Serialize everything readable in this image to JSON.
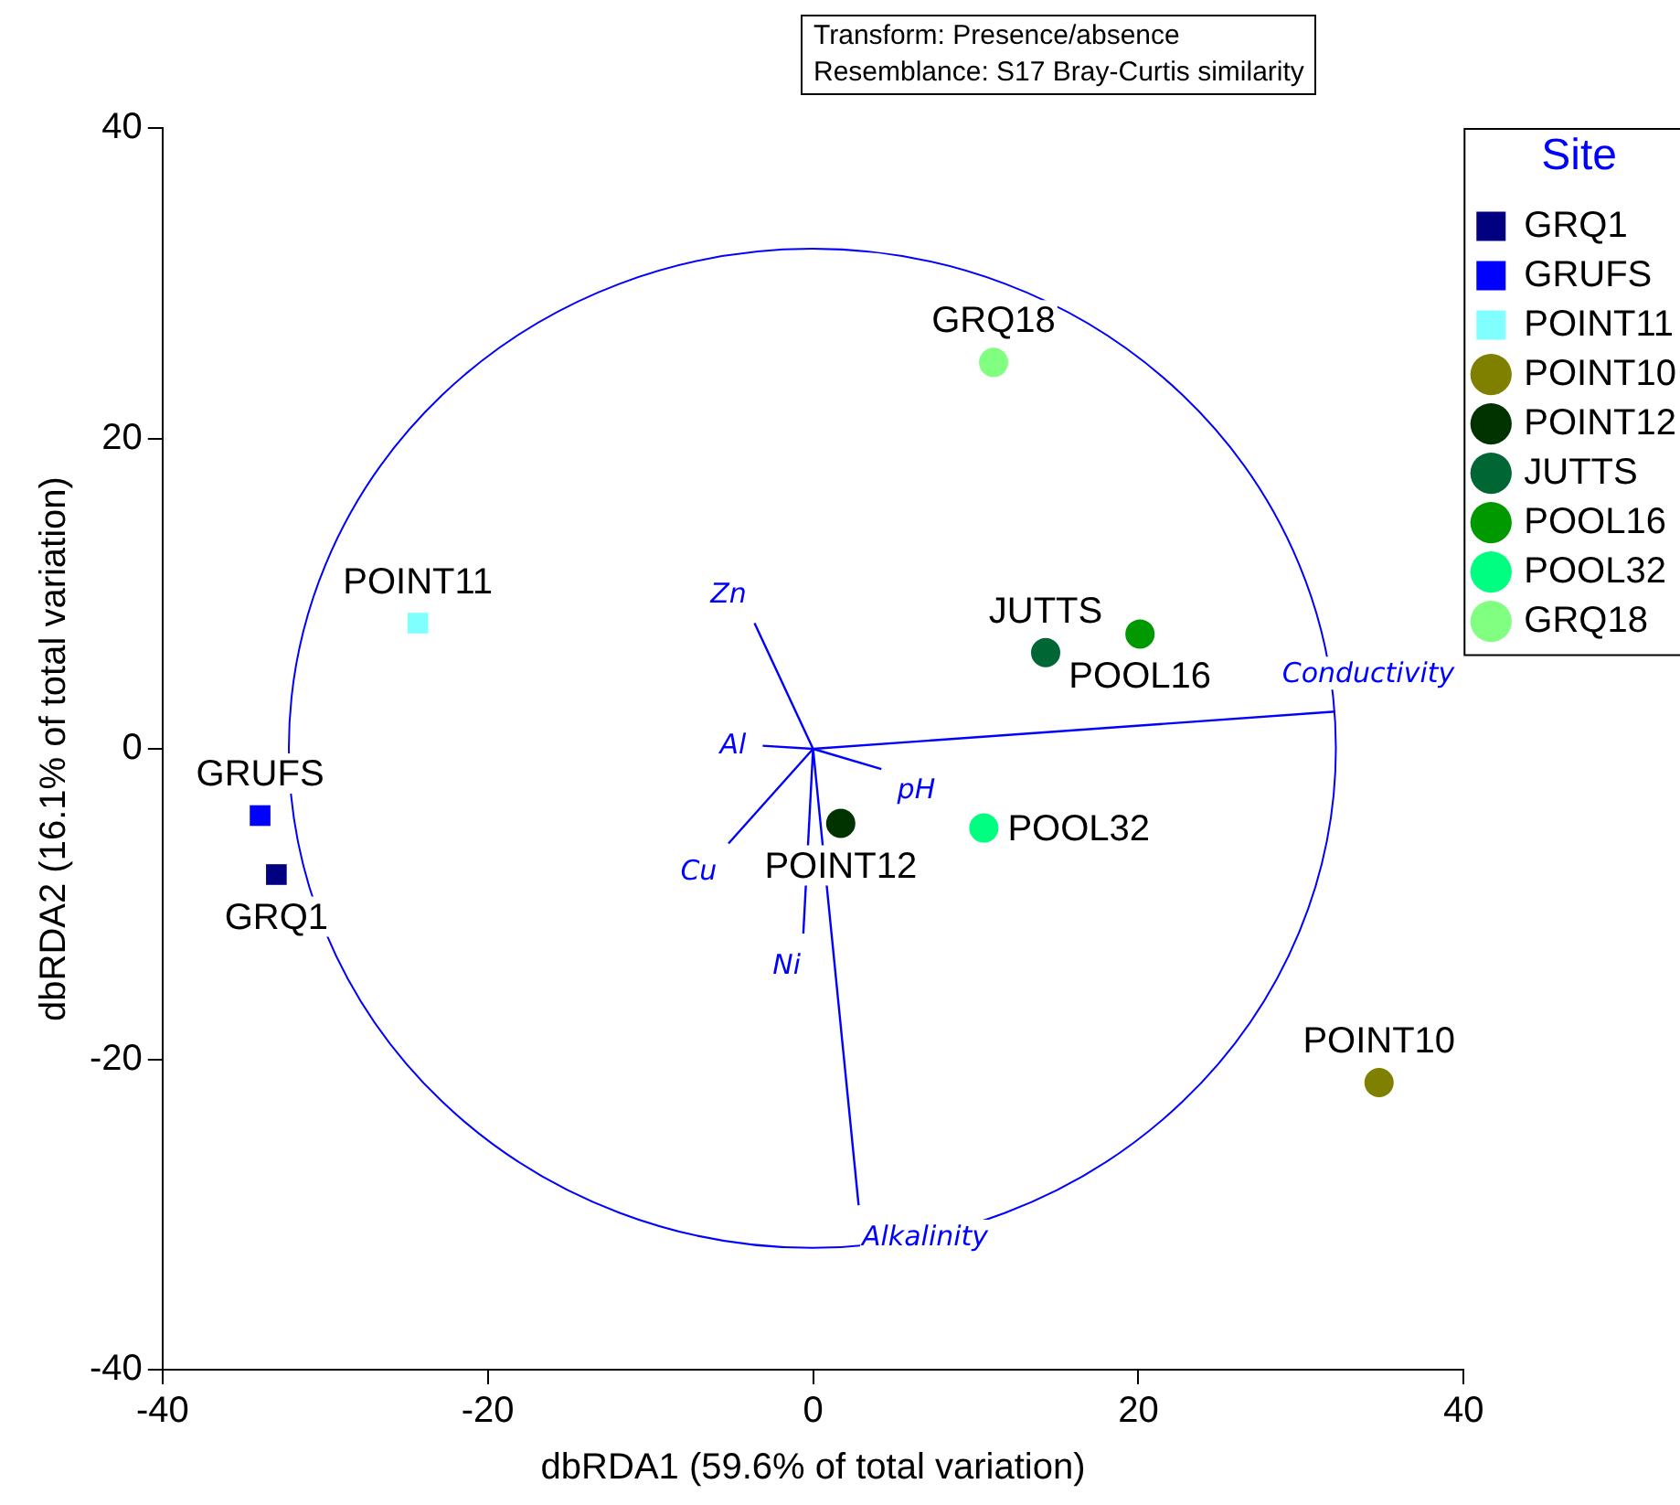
{
  "chart_data": {
    "type": "scatter",
    "xlabel": "dbRDA1 (59.6% of total variation)",
    "ylabel": "dbRDA2 (16.1% of total variation)",
    "legend_title": "Site",
    "annotations": [
      "Transform: Presence/absence",
      "Resemblance: S17 Bray-Curtis similarity"
    ],
    "xlim": [
      -40,
      40
    ],
    "xticks": [
      -40,
      -20,
      0,
      20,
      40
    ],
    "ylim": [
      -40,
      40
    ],
    "yticks": [
      -40,
      -20,
      0,
      20,
      40
    ],
    "grid": false,
    "legend": "top right",
    "series": [
      {
        "name": "GRQ1",
        "color": "#000080",
        "marker": "square",
        "x": [
          -33.0
        ],
        "values": [
          -8.1
        ]
      },
      {
        "name": "GRUFS",
        "color": "#0000ff",
        "marker": "square",
        "x": [
          -34.0
        ],
        "values": [
          -4.3
        ]
      },
      {
        "name": "POINT11",
        "color": "#80ffff",
        "marker": "square",
        "x": [
          -24.3
        ],
        "values": [
          8.1
        ]
      },
      {
        "name": "POINT10",
        "color": "#808000",
        "marker": "circle",
        "x": [
          34.8
        ],
        "values": [
          -21.5
        ]
      },
      {
        "name": "POINT12",
        "color": "#003300",
        "marker": "circle",
        "x": [
          1.7
        ],
        "values": [
          -4.8
        ]
      },
      {
        "name": "JUTTS",
        "color": "#006633",
        "marker": "circle",
        "x": [
          14.3
        ],
        "values": [
          6.2
        ]
      },
      {
        "name": "POOL16",
        "color": "#009900",
        "marker": "circle",
        "x": [
          20.1
        ],
        "values": [
          7.4
        ]
      },
      {
        "name": "POOL32",
        "color": "#00ff80",
        "marker": "circle",
        "x": [
          10.5
        ],
        "values": [
          -5.1
        ]
      },
      {
        "name": "GRQ18",
        "color": "#80ff80",
        "marker": "circle",
        "x": [
          11.1
        ],
        "values": [
          24.9
        ]
      },
      {
        "name": "Zn",
        "type": "line",
        "color": "#0000ff",
        "x": [
          0,
          -3.6
        ],
        "values": [
          0,
          8.1
        ]
      },
      {
        "name": "Al",
        "type": "line",
        "color": "#0000ff",
        "x": [
          0,
          -3.1
        ],
        "values": [
          0,
          0.2
        ]
      },
      {
        "name": "Cu",
        "type": "line",
        "color": "#0000ff",
        "x": [
          0,
          -5.2
        ],
        "values": [
          0,
          -6.1
        ]
      },
      {
        "name": "Ni",
        "type": "line",
        "color": "#0000ff",
        "x": [
          0,
          -0.6
        ],
        "values": [
          0,
          -11.9
        ]
      },
      {
        "name": "pH",
        "type": "line",
        "color": "#0000ff",
        "x": [
          0,
          4.2
        ],
        "values": [
          0,
          -1.3
        ]
      },
      {
        "name": "Alkalinity",
        "type": "line",
        "color": "#0000ff",
        "x": [
          0,
          2.8
        ],
        "values": [
          0,
          -29.4
        ]
      },
      {
        "name": "Conductivity",
        "type": "line",
        "color": "#0000ff",
        "x": [
          0,
          32.1
        ],
        "values": [
          0,
          2.4
        ]
      }
    ]
  }
}
